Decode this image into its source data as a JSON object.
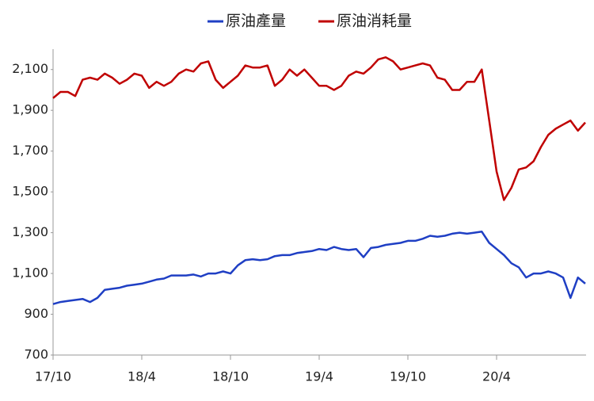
{
  "chart_data": {
    "type": "line",
    "categories": [
      "17/10",
      null,
      null,
      null,
      null,
      null,
      null,
      null,
      null,
      null,
      null,
      null,
      "18/4",
      null,
      null,
      null,
      null,
      null,
      null,
      null,
      null,
      null,
      null,
      null,
      "18/10",
      null,
      null,
      null,
      null,
      null,
      null,
      null,
      null,
      null,
      null,
      null,
      "19/4",
      null,
      null,
      null,
      null,
      null,
      null,
      null,
      null,
      null,
      null,
      null,
      "19/10",
      null,
      null,
      null,
      null,
      null,
      null,
      null,
      null,
      null,
      null,
      null,
      "20/4",
      null,
      null,
      null,
      null,
      null,
      null,
      null,
      null,
      null,
      null,
      null,
      null
    ],
    "series": [
      {
        "name": "原油產量",
        "color": "#1f3fc4",
        "values": [
          950,
          960,
          965,
          970,
          975,
          960,
          980,
          1020,
          1025,
          1030,
          1040,
          1045,
          1050,
          1060,
          1070,
          1075,
          1090,
          1090,
          1090,
          1095,
          1085,
          1100,
          1100,
          1110,
          1100,
          1140,
          1165,
          1170,
          1165,
          1170,
          1185,
          1190,
          1190,
          1200,
          1205,
          1210,
          1220,
          1215,
          1230,
          1220,
          1215,
          1220,
          1180,
          1225,
          1230,
          1240,
          1245,
          1250,
          1260,
          1260,
          1270,
          1285,
          1280,
          1285,
          1295,
          1300,
          1295,
          1300,
          1305,
          1250,
          1220,
          1190,
          1150,
          1130,
          1080,
          1100,
          1100,
          1110,
          1100,
          1080,
          980,
          1080,
          1050
        ]
      },
      {
        "name": "原油消耗量",
        "color": "#c00000",
        "values": [
          1960,
          1990,
          1990,
          1970,
          2050,
          2060,
          2050,
          2080,
          2060,
          2030,
          2050,
          2080,
          2070,
          2010,
          2040,
          2020,
          2040,
          2080,
          2100,
          2090,
          2130,
          2140,
          2050,
          2010,
          2040,
          2070,
          2120,
          2110,
          2110,
          2120,
          2020,
          2050,
          2100,
          2070,
          2100,
          2060,
          2020,
          2020,
          2000,
          2020,
          2070,
          2090,
          2080,
          2110,
          2150,
          2160,
          2140,
          2100,
          2110,
          2120,
          2130,
          2120,
          2060,
          2050,
          2000,
          2000,
          2040,
          2040,
          2100,
          1850,
          1600,
          1460,
          1520,
          1610,
          1620,
          1650,
          1720,
          1780,
          1810,
          1830,
          1850,
          1800,
          1840
        ]
      }
    ],
    "ylim": [
      700,
      2200
    ],
    "yticks": [
      700,
      900,
      {
        "value": 1100,
        "label": "1,100"
      },
      {
        "value": 1300,
        "label": "1,300"
      },
      {
        "value": 1500,
        "label": "1,500"
      },
      {
        "value": 1700,
        "label": "1,700"
      },
      {
        "value": 1900,
        "label": "1,900"
      },
      {
        "value": 2100,
        "label": "2,100"
      }
    ],
    "grid": false
  }
}
